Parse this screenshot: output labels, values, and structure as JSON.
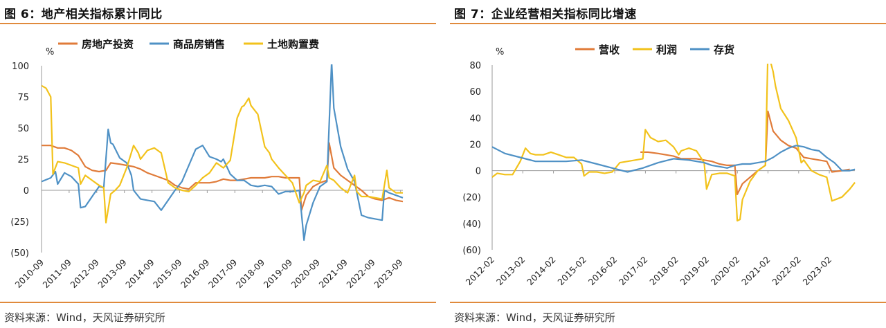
{
  "charts": [
    {
      "fig_title": "图 6：地产相关指标累计同比",
      "source": "资料来源：Wind，天风证券研究所"
    },
    {
      "fig_title": "图 7：企业经营相关指标同比增速",
      "source": "资料来源：Wind，天风证券研究所"
    }
  ],
  "chart_data": [
    {
      "type": "line",
      "title": "图 6：地产相关指标累计同比",
      "ylabel": "%",
      "ylim": [
        -50,
        100
      ],
      "yticks": [
        100,
        75,
        50,
        25,
        0,
        -25,
        -50
      ],
      "ytick_labels": [
        "100",
        "75",
        "50",
        "25",
        "0",
        "(25)",
        "(50)"
      ],
      "xrange": [
        2010.667,
        2023.75
      ],
      "xtick_labels": [
        "2010-09",
        "2011-09",
        "2012-09",
        "2013-09",
        "2014-09",
        "2015-09",
        "2016-09",
        "2017-09",
        "2018-09",
        "2019-09",
        "2020-09",
        "2021-09",
        "2022-09",
        "2023-09"
      ],
      "legend_position": "top",
      "grid": false,
      "series": [
        {
          "name": "房地产投资",
          "color": "#e07b39",
          "x": [
            2010.67,
            2011.0,
            2011.25,
            2011.5,
            2011.75,
            2012.0,
            2012.25,
            2012.5,
            2012.75,
            2013.0,
            2013.17,
            2013.5,
            2013.75,
            2014.0,
            2014.25,
            2014.5,
            2014.75,
            2015.0,
            2015.25,
            2015.5,
            2015.75,
            2016.0,
            2016.25,
            2016.5,
            2016.75,
            2017.0,
            2017.25,
            2017.5,
            2017.75,
            2018.0,
            2018.25,
            2018.5,
            2018.75,
            2019.0,
            2019.25,
            2019.5,
            2019.75,
            2020.0,
            2020.08,
            2020.25,
            2020.5,
            2020.75,
            2021.0,
            2021.08,
            2021.25,
            2021.5,
            2021.75,
            2022.0,
            2022.25,
            2022.5,
            2022.75,
            2023.0,
            2023.25,
            2023.5,
            2023.75
          ],
          "y": [
            36,
            36,
            34,
            34,
            32,
            28,
            19,
            16,
            15,
            16,
            22,
            21,
            20,
            19,
            17,
            14,
            12,
            10,
            8,
            4,
            2,
            1,
            6,
            6,
            6,
            7,
            9,
            8,
            8,
            9,
            10,
            10,
            10,
            11,
            11,
            10,
            10,
            10,
            -16,
            -4,
            3,
            6,
            8,
            38,
            18,
            12,
            8,
            4,
            0,
            -5,
            -7,
            -8,
            -6,
            -8,
            -9
          ]
        },
        {
          "name": "商品房销售",
          "color": "#4f91c5",
          "x": [
            2010.67,
            2011.0,
            2011.17,
            2011.25,
            2011.5,
            2011.75,
            2012.0,
            2012.08,
            2012.25,
            2012.5,
            2012.75,
            2012.92,
            2013.08,
            2013.17,
            2013.25,
            2013.5,
            2013.75,
            2013.92,
            2014.0,
            2014.25,
            2014.5,
            2014.75,
            2015.0,
            2015.25,
            2015.5,
            2015.75,
            2016.0,
            2016.25,
            2016.5,
            2016.75,
            2017.0,
            2017.17,
            2017.25,
            2017.5,
            2017.75,
            2018.0,
            2018.25,
            2018.5,
            2018.75,
            2019.0,
            2019.25,
            2019.5,
            2019.75,
            2020.0,
            2020.17,
            2020.25,
            2020.5,
            2020.75,
            2021.0,
            2021.17,
            2021.25,
            2021.5,
            2021.75,
            2022.0,
            2022.25,
            2022.5,
            2022.75,
            2023.0,
            2023.08,
            2023.25,
            2023.5,
            2023.75
          ],
          "y": [
            7,
            10,
            15,
            5,
            14,
            11,
            5,
            -14,
            -13,
            -5,
            3,
            2,
            49,
            38,
            37,
            26,
            22,
            12,
            0,
            -7,
            -8,
            -9,
            -16,
            -8,
            0,
            7,
            20,
            33,
            36,
            27,
            25,
            23,
            25,
            13,
            8,
            8,
            4,
            3,
            4,
            3,
            -3,
            -1,
            -1,
            0,
            -40,
            -28,
            -10,
            3,
            7,
            103,
            66,
            35,
            17,
            7,
            -20,
            -22,
            -23,
            -24,
            0,
            -2,
            -4,
            -6
          ]
        },
        {
          "name": "土地购置费",
          "color": "#f2c21b",
          "x": [
            2010.67,
            2010.83,
            2011.0,
            2011.08,
            2011.25,
            2011.5,
            2011.75,
            2012.0,
            2012.08,
            2012.25,
            2012.5,
            2012.75,
            2012.92,
            2013.0,
            2013.17,
            2013.33,
            2013.5,
            2013.75,
            2014.0,
            2014.17,
            2014.25,
            2014.5,
            2014.75,
            2015.0,
            2015.25,
            2015.5,
            2015.75,
            2016.0,
            2016.25,
            2016.5,
            2016.75,
            2017.0,
            2017.25,
            2017.5,
            2017.75,
            2017.92,
            2018.0,
            2018.17,
            2018.25,
            2018.5,
            2018.75,
            2018.92,
            2019.0,
            2019.25,
            2019.5,
            2019.75,
            2020.0,
            2020.17,
            2020.25,
            2020.5,
            2020.75,
            2021.0,
            2021.08,
            2021.25,
            2021.5,
            2021.75,
            2022.0,
            2022.08,
            2022.25,
            2022.5,
            2022.75,
            2023.0,
            2023.17,
            2023.25,
            2023.5,
            2023.75
          ],
          "y": [
            84,
            82,
            75,
            13,
            23,
            22,
            20,
            18,
            5,
            12,
            8,
            4,
            2,
            -26,
            -3,
            0,
            4,
            18,
            36,
            30,
            25,
            32,
            34,
            30,
            6,
            2,
            0,
            -1,
            4,
            10,
            14,
            22,
            18,
            24,
            58,
            67,
            68,
            74,
            68,
            61,
            35,
            30,
            25,
            18,
            12,
            6,
            -10,
            -2,
            4,
            8,
            7,
            20,
            10,
            8,
            2,
            -2,
            12,
            -1,
            -5,
            -5,
            -6,
            -7,
            16,
            2,
            -2,
            -2
          ]
        }
      ]
    },
    {
      "type": "line",
      "title": "图 7：企业经营相关指标同比增速",
      "ylabel": "%",
      "ylim": [
        -60,
        80
      ],
      "yticks": [
        80,
        60,
        40,
        20,
        0,
        -20,
        -40,
        -60
      ],
      "ytick_labels": [
        "80",
        "60",
        "40",
        "20",
        "0",
        "(20)",
        "(40)",
        "(60)"
      ],
      "xrange": [
        2012.083,
        2023.917
      ],
      "xtick_labels": [
        "2012-02",
        "2013-02",
        "2014-02",
        "2015-02",
        "2016-02",
        "2017-02",
        "2018-02",
        "2019-02",
        "2020-02",
        "2021-02",
        "2022-02",
        "2023-02"
      ],
      "legend_position": "top",
      "grid": false,
      "series": [
        {
          "name": "营收",
          "color": "#e07b39",
          "x": [
            2016.92,
            2017.17,
            2017.5,
            2017.75,
            2018.0,
            2018.25,
            2018.5,
            2018.75,
            2019.0,
            2019.25,
            2019.5,
            2019.75,
            2020.0,
            2020.08,
            2020.25,
            2020.5,
            2020.75,
            2021.0,
            2021.08,
            2021.25,
            2021.5,
            2021.75,
            2022.0,
            2022.25,
            2022.5,
            2022.75,
            2023.0,
            2023.17,
            2023.5,
            2023.75
          ],
          "y": [
            14,
            14,
            13,
            12,
            11,
            9,
            9,
            9,
            8,
            7,
            5,
            4,
            4,
            -18,
            -10,
            -5,
            0,
            4,
            45,
            30,
            23,
            19,
            17,
            10,
            9,
            8,
            7,
            -1,
            0,
            1
          ]
        },
        {
          "name": "利润",
          "color": "#f2c21b",
          "x": [
            2012.08,
            2012.25,
            2012.5,
            2012.75,
            2013.0,
            2013.17,
            2013.33,
            2013.5,
            2013.75,
            2014.0,
            2014.25,
            2014.5,
            2014.75,
            2015.0,
            2015.08,
            2015.25,
            2015.5,
            2015.75,
            2016.0,
            2016.25,
            2016.5,
            2016.75,
            2017.0,
            2017.08,
            2017.25,
            2017.5,
            2017.75,
            2018.0,
            2018.17,
            2018.25,
            2018.5,
            2018.75,
            2019.0,
            2019.08,
            2019.25,
            2019.5,
            2019.75,
            2020.0,
            2020.08,
            2020.17,
            2020.25,
            2020.5,
            2020.75,
            2021.0,
            2021.08,
            2021.25,
            2021.33,
            2021.5,
            2021.75,
            2022.0,
            2022.17,
            2022.25,
            2022.5,
            2022.75,
            2023.0,
            2023.17,
            2023.5,
            2023.75,
            2023.92
          ],
          "y": [
            -5,
            -2,
            -3,
            -3,
            7,
            17,
            13,
            12,
            12,
            14,
            12,
            10,
            10,
            5,
            -4,
            -1,
            -1,
            -2,
            -1,
            6,
            7,
            8,
            9,
            31,
            25,
            22,
            23,
            18,
            12,
            15,
            17,
            15,
            6,
            -14,
            -3,
            -2,
            -2,
            -4,
            -38,
            -37,
            -22,
            -8,
            0,
            4,
            90,
            75,
            64,
            47,
            38,
            25,
            6,
            8,
            0,
            -3,
            -5,
            -23,
            -20,
            -14,
            -9
          ]
        },
        {
          "name": "存货",
          "color": "#4f91c5",
          "x": [
            2012.08,
            2012.5,
            2013.0,
            2013.5,
            2014.0,
            2014.5,
            2015.0,
            2015.5,
            2016.0,
            2016.5,
            2017.0,
            2017.5,
            2018.0,
            2018.5,
            2019.0,
            2019.25,
            2019.5,
            2019.75,
            2020.0,
            2020.25,
            2020.5,
            2020.75,
            2021.0,
            2021.25,
            2021.5,
            2021.75,
            2022.0,
            2022.25,
            2022.5,
            2022.75,
            2023.0,
            2023.25,
            2023.5,
            2023.75,
            2023.92
          ],
          "y": [
            18,
            13,
            10,
            7,
            7,
            7,
            8,
            5,
            2,
            -1,
            2,
            6,
            9,
            8,
            6,
            4,
            3,
            2,
            4,
            5,
            5,
            6,
            7,
            10,
            14,
            17,
            19,
            18,
            16,
            15,
            10,
            6,
            0,
            0,
            1
          ]
        }
      ]
    }
  ]
}
